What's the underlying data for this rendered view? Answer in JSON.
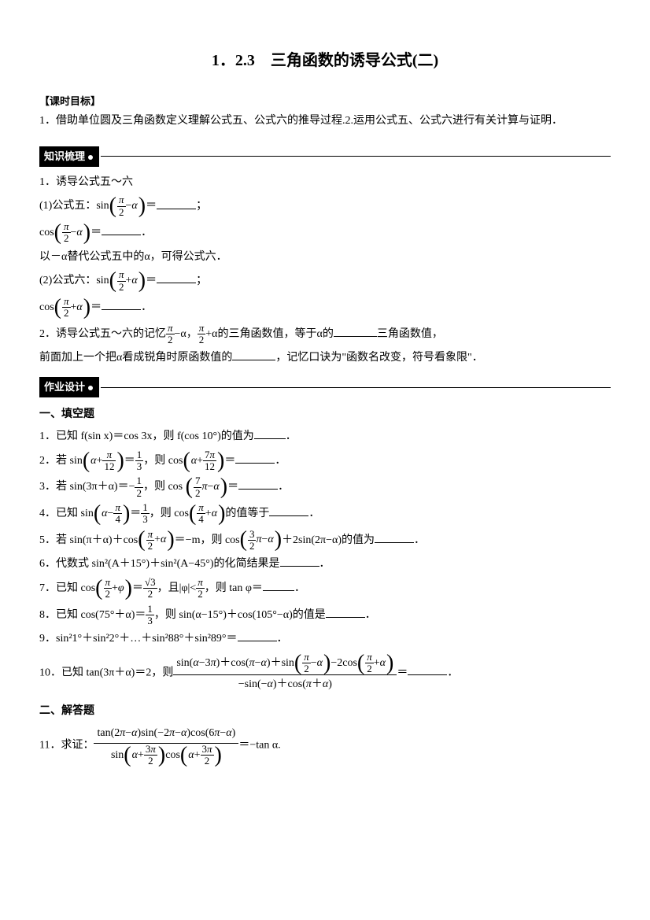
{
  "title": "1．2.3　三角函数的诱导公式(二)",
  "goal_label": "【课时目标】",
  "goal_text": "1．借助单位圆及三角函数定义理解公式五、公式六的推导过程.2.运用公式五、公式六进行有关计算与证明．",
  "tab_knowledge": "知识梳理",
  "tab_homework": "作业设计",
  "k1_head": "1．诱导公式五～六",
  "k1_f5_pre": "(1)公式五：sin",
  "k1_f5_cos": "cos",
  "k1_sub": "以－α替代公式五中的α，可得公式六．",
  "k1_f6_pre": "(2)公式六：sin",
  "k2_pre": "2．诱导公式五～六的记忆",
  "k2_mid1": "−α，",
  "k2_mid2": "+α的三角函数值，等于α的",
  "k2_mid3": "三角函数值，",
  "k2_line2a": "前面加上一个把α看成锐角时原函数值的",
  "k2_line2b": "，记忆口诀为\"函数名改变，符号看象限\"．",
  "fill_head": "一、填空题",
  "q1": "1．已知 f(sin x)＝cos 3x，则 f(cos 10°)的值为",
  "q2a": "2．若 sin",
  "q2b": "，则 cos",
  "q3a": "3．若 sin(3π＋α)＝−",
  "q3b": "，则 cos",
  "q4a": "4．已知 sin",
  "q4b": "，则 cos",
  "q4c": "的值等于",
  "q5a": "5．若 sin(π＋α)＋cos",
  "q5b": "＝−m，则 cos",
  "q5c": "＋2sin(2π−α)的值为",
  "q6": "6．代数式 sin²(A＋15°)＋sin²(A−45°)的化简结果是",
  "q7a": "7．已知 cos",
  "q7b": "，且|φ|<",
  "q7c": "，则 tan φ＝",
  "q8a": "8．已知 cos(75°＋α)＝",
  "q8b": "，则 sin(α−15°)＋cos(105°−α)的值是",
  "q9": "9．sin²1°＋sin²2°＋…＋sin²88°＋sin²89°＝",
  "q10a": "10．已知 tan(3π＋α)＝2，则",
  "solve_head": "二、解答题",
  "q11a": "11．求证：",
  "q11b": "＝−tan α."
}
